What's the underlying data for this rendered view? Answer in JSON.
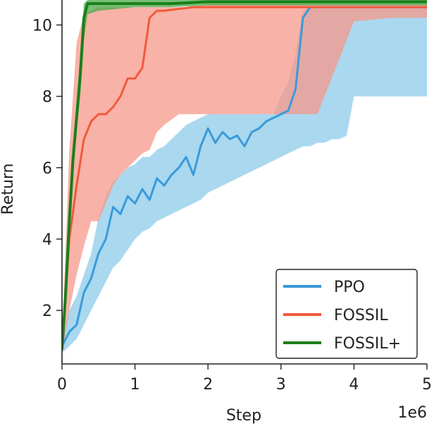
{
  "chart_data": {
    "type": "line",
    "xlabel": "Step",
    "ylabel": "Return",
    "x_offset_label": "1e6",
    "xlim": [
      0,
      5
    ],
    "ylim": [
      0.5,
      10.7
    ],
    "xticks": [
      0,
      1,
      2,
      3,
      4,
      5
    ],
    "xtick_labels": [
      "0",
      "1",
      "2",
      "3",
      "4",
      "5"
    ],
    "yticks": [
      2,
      4,
      6,
      8,
      10
    ],
    "ytick_labels": [
      "2",
      "4",
      "6",
      "8",
      "10"
    ],
    "grid": false,
    "legend_position": "bottom-right",
    "series": [
      {
        "name": "PPO",
        "color": "#3a9ad9",
        "band_color": "#8ccbe9",
        "x": [
          0.0,
          0.1,
          0.2,
          0.3,
          0.4,
          0.5,
          0.6,
          0.7,
          0.8,
          0.9,
          1.0,
          1.1,
          1.2,
          1.3,
          1.4,
          1.5,
          1.6,
          1.7,
          1.8,
          1.9,
          2.0,
          2.1,
          2.2,
          2.3,
          2.4,
          2.5,
          2.6,
          2.7,
          2.8,
          2.9,
          3.0,
          3.1,
          3.2,
          3.3,
          3.4,
          3.5,
          3.6,
          3.7,
          3.8,
          3.9,
          4.0,
          4.1,
          4.2,
          4.3,
          4.4,
          4.5,
          4.6,
          4.7,
          4.8,
          4.9,
          5.0
        ],
        "y": [
          1.0,
          1.4,
          1.6,
          2.5,
          2.9,
          3.6,
          4.0,
          4.9,
          4.7,
          5.2,
          5.0,
          5.4,
          5.1,
          5.7,
          5.5,
          5.8,
          6.0,
          6.3,
          5.8,
          6.6,
          7.1,
          6.7,
          7.0,
          6.8,
          6.9,
          6.6,
          7.0,
          7.1,
          7.3,
          7.4,
          7.5,
          7.6,
          8.2,
          10.2,
          10.5,
          10.5,
          10.5,
          10.5,
          10.5,
          10.5,
          10.5,
          10.5,
          10.5,
          10.5,
          10.5,
          10.5,
          10.5,
          10.5,
          10.5,
          10.5,
          10.5
        ],
        "lower": [
          0.8,
          1.0,
          1.2,
          1.6,
          2.0,
          2.4,
          2.8,
          3.2,
          3.4,
          3.7,
          4.0,
          4.2,
          4.3,
          4.5,
          4.6,
          4.7,
          4.8,
          4.9,
          5.0,
          5.1,
          5.3,
          5.4,
          5.5,
          5.6,
          5.7,
          5.8,
          5.9,
          6.0,
          6.1,
          6.2,
          6.3,
          6.4,
          6.5,
          6.6,
          6.6,
          6.7,
          6.7,
          6.8,
          6.8,
          6.9,
          8.0,
          8.0,
          8.0,
          8.0,
          8.0,
          8.0,
          8.0,
          8.0,
          8.0,
          8.0,
          8.0
        ],
        "upper": [
          1.2,
          2.0,
          2.4,
          3.0,
          3.6,
          4.6,
          5.2,
          5.6,
          5.8,
          6.0,
          6.1,
          6.3,
          6.3,
          6.5,
          6.6,
          6.8,
          7.0,
          7.2,
          7.3,
          7.4,
          7.5,
          7.5,
          7.5,
          7.5,
          7.5,
          7.5,
          7.5,
          7.5,
          7.5,
          7.5,
          8.0,
          8.4,
          9.2,
          10.4,
          10.5,
          10.5,
          10.5,
          10.5,
          10.5,
          10.5,
          10.5,
          10.5,
          10.5,
          10.5,
          10.5,
          10.5,
          10.5,
          10.5,
          10.5,
          10.5,
          10.5
        ]
      },
      {
        "name": "FOSSIL",
        "color": "#f05a3c",
        "band_color": "#f7988a",
        "x": [
          0.0,
          0.1,
          0.2,
          0.3,
          0.4,
          0.5,
          0.6,
          0.7,
          0.8,
          0.9,
          1.0,
          1.1,
          1.2,
          1.3,
          1.4,
          1.6,
          1.8,
          2.0,
          2.5,
          3.0,
          3.5,
          4.0,
          4.5,
          5.0
        ],
        "y": [
          0.9,
          4.0,
          5.5,
          6.8,
          7.3,
          7.5,
          7.5,
          7.7,
          8.0,
          8.5,
          8.5,
          8.8,
          10.2,
          10.4,
          10.4,
          10.45,
          10.5,
          10.5,
          10.5,
          10.5,
          10.5,
          10.5,
          10.5,
          10.5
        ],
        "lower": [
          0.8,
          2.0,
          3.0,
          3.8,
          4.5,
          4.5,
          5.0,
          5.5,
          5.8,
          6.0,
          6.2,
          6.4,
          6.5,
          7.0,
          7.2,
          7.5,
          7.5,
          7.5,
          7.5,
          7.5,
          7.5,
          10.1,
          10.2,
          10.2
        ],
        "upper": [
          1.0,
          6.5,
          9.5,
          10.3,
          10.4,
          10.5,
          10.5,
          10.5,
          10.5,
          10.5,
          10.5,
          10.5,
          10.5,
          10.5,
          10.5,
          10.5,
          10.5,
          10.6,
          10.6,
          10.6,
          10.6,
          10.6,
          10.6,
          10.6
        ]
      },
      {
        "name": "FOSSIL+",
        "color": "#1a7f1a",
        "band_color": "#4aa84a",
        "x": [
          0.0,
          0.05,
          0.1,
          0.15,
          0.2,
          0.25,
          0.3,
          0.35,
          0.5,
          1.0,
          1.5,
          2.0,
          3.0,
          4.0,
          5.0
        ],
        "y": [
          0.9,
          2.5,
          4.5,
          6.2,
          7.4,
          8.6,
          10.2,
          10.6,
          10.6,
          10.6,
          10.6,
          10.65,
          10.65,
          10.65,
          10.65
        ],
        "lower": [
          0.8,
          2.2,
          4.0,
          5.8,
          7.0,
          8.0,
          9.6,
          10.3,
          10.4,
          10.5,
          10.5,
          10.55,
          10.55,
          10.55,
          10.55
        ],
        "upper": [
          1.0,
          2.8,
          5.0,
          6.6,
          7.8,
          9.2,
          10.6,
          10.7,
          10.7,
          10.7,
          10.7,
          10.7,
          10.7,
          10.7,
          10.7
        ]
      }
    ]
  }
}
